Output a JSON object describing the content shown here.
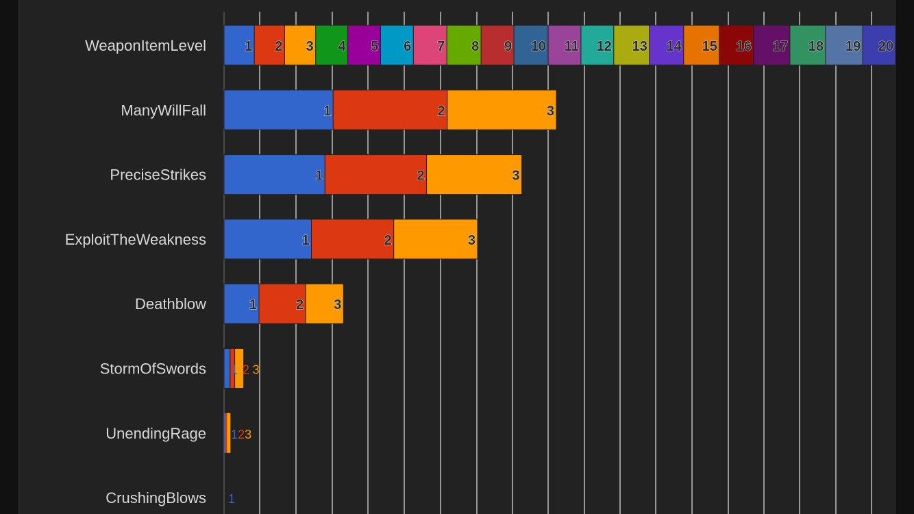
{
  "chart_data": {
    "type": "bar",
    "orientation": "horizontal",
    "stacked": true,
    "title": "",
    "xlabel": "",
    "ylabel": "",
    "xlim": [
      0,
      18.85
    ],
    "grid": true,
    "categories": [
      "WeaponItemLevel",
      "ManyWillFall",
      "PreciseStrikes",
      "ExploitTheWeakness",
      "Deathblow",
      "StormOfSwords",
      "UnendingRage",
      "CrushingBlows"
    ],
    "rows": [
      {
        "category": "WeaponItemLevel",
        "segments": [
          {
            "label": "1",
            "value": 0.85
          },
          {
            "label": "2",
            "value": 0.85
          },
          {
            "label": "3",
            "value": 0.87
          },
          {
            "label": "4",
            "value": 0.9
          },
          {
            "label": "5",
            "value": 0.92
          },
          {
            "label": "6",
            "value": 0.92
          },
          {
            "label": "7",
            "value": 0.94
          },
          {
            "label": "8",
            "value": 0.96
          },
          {
            "label": "9",
            "value": 0.92
          },
          {
            "label": "10",
            "value": 0.96
          },
          {
            "label": "11",
            "value": 0.92
          },
          {
            "label": "12",
            "value": 0.92
          },
          {
            "label": "13",
            "value": 1.0
          },
          {
            "label": "14",
            "value": 0.96
          },
          {
            "label": "15",
            "value": 1.0
          },
          {
            "label": "16",
            "value": 0.96
          },
          {
            "label": "17",
            "value": 1.02
          },
          {
            "label": "18",
            "value": 1.0
          },
          {
            "label": "19",
            "value": 1.04
          },
          {
            "label": "20",
            "value": 0.92
          }
        ]
      },
      {
        "category": "ManyWillFall",
        "segments": [
          {
            "label": "1",
            "value": 3.06
          },
          {
            "label": "2",
            "value": 3.2
          },
          {
            "label": "3",
            "value": 3.06
          }
        ]
      },
      {
        "category": "PreciseStrikes",
        "segments": [
          {
            "label": "1",
            "value": 2.83
          },
          {
            "label": "2",
            "value": 2.85
          },
          {
            "label": "3",
            "value": 2.67
          }
        ]
      },
      {
        "category": "ExploitTheWeakness",
        "segments": [
          {
            "label": "1",
            "value": 2.45
          },
          {
            "label": "2",
            "value": 2.31
          },
          {
            "label": "3",
            "value": 2.35
          }
        ]
      },
      {
        "category": "Deathblow",
        "segments": [
          {
            "label": "1",
            "value": 0.98
          },
          {
            "label": "2",
            "value": 1.31
          },
          {
            "label": "3",
            "value": 1.06
          }
        ]
      },
      {
        "category": "StormOfSwords",
        "segments": [
          {
            "label": "1",
            "value": 0.17
          },
          {
            "label": "2",
            "value": 0.13
          },
          {
            "label": "3",
            "value": 0.25
          }
        ]
      },
      {
        "category": "UnendingRage",
        "segments": [
          {
            "label": "1",
            "value": 0.04
          },
          {
            "label": "2",
            "value": 0.04
          },
          {
            "label": "3",
            "value": 0.1
          }
        ]
      },
      {
        "category": "CrushingBlows",
        "segments": [
          {
            "label": "1",
            "value": 0.0
          }
        ]
      }
    ],
    "segment_colors": [
      "#3366cc",
      "#dc3912",
      "#ff9900",
      "#109618",
      "#990099",
      "#0099c6",
      "#dd4477",
      "#66aa00",
      "#b82e2e",
      "#316395",
      "#994499",
      "#22aa99",
      "#aaaa11",
      "#6633cc",
      "#e67300",
      "#8b0707",
      "#651067",
      "#329262",
      "#5574a6",
      "#3b3eac"
    ],
    "colors": {
      "background": "#222222",
      "outer_background": "#111111",
      "gridline": "#e6e6e6",
      "axis_line": "#555555",
      "label_text": "#d8d8d8"
    }
  }
}
